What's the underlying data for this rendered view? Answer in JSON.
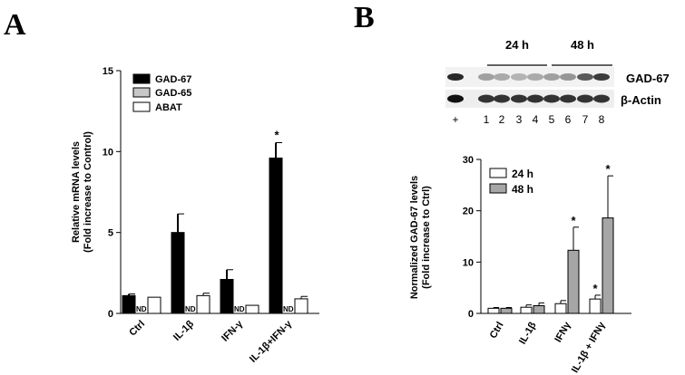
{
  "panels": {
    "a_letter": "A",
    "b_letter": "B"
  },
  "blot": {
    "time_labels": [
      "24 h",
      "48 h"
    ],
    "row_labels": [
      "GAD-67",
      "β-Actin"
    ],
    "lanes": [
      "+",
      "1",
      "2",
      "3",
      "4",
      "5",
      "6",
      "7",
      "8"
    ]
  },
  "chart_data": [
    {
      "type": "bar",
      "ylabel": "Relative mRNA levels",
      "ylabel2": "(Fold increase to Control)",
      "ylim": [
        0,
        15
      ],
      "yticks": [
        "0",
        "5",
        "10",
        "15"
      ],
      "categories": [
        "Ctrl",
        "IL-1β",
        "IFN-γ",
        "IL-1β+IFN-γ"
      ],
      "series": [
        {
          "name": "GAD-67",
          "color": "#000000",
          "values": [
            1.1,
            5.0,
            2.1,
            9.6
          ],
          "errors": [
            0.1,
            1.15,
            0.6,
            0.95
          ]
        },
        {
          "name": "GAD-65",
          "color": "#c8c8c8",
          "values": [
            null,
            null,
            null,
            null
          ],
          "errors": [
            0,
            0,
            0,
            0
          ],
          "labels": [
            "ND",
            "ND",
            "ND",
            "ND"
          ]
        },
        {
          "name": "ABAT",
          "color": "#ffffff",
          "values": [
            1.0,
            1.1,
            0.5,
            0.9
          ],
          "errors": [
            0,
            0.15,
            0,
            0.15
          ]
        }
      ],
      "annotations": [
        "",
        "",
        "",
        "*"
      ],
      "legend": "top-left"
    },
    {
      "type": "bar",
      "ylabel": "Normalized GAD-67 levels",
      "ylabel2": "(Fold increase to Ctrl)",
      "ylim": [
        0,
        30
      ],
      "yticks": [
        "0",
        "10",
        "20",
        "30"
      ],
      "categories": [
        "Ctrl",
        "IL-1β",
        "IFNγ",
        "IL-1β + IFNγ"
      ],
      "series": [
        {
          "name": "24 h",
          "color": "#ffffff",
          "values": [
            1.0,
            1.2,
            1.9,
            2.8
          ],
          "errors": [
            0.15,
            0.45,
            0.6,
            0.75
          ],
          "annotations": [
            "",
            "",
            "",
            "*"
          ]
        },
        {
          "name": "48 h",
          "color": "#a6a6a6",
          "values": [
            1.0,
            1.5,
            12.3,
            18.6
          ],
          "errors": [
            0.15,
            0.55,
            4.5,
            8.2
          ],
          "annotations": [
            "",
            "",
            "*",
            "*"
          ]
        }
      ],
      "legend": "top-left"
    }
  ]
}
